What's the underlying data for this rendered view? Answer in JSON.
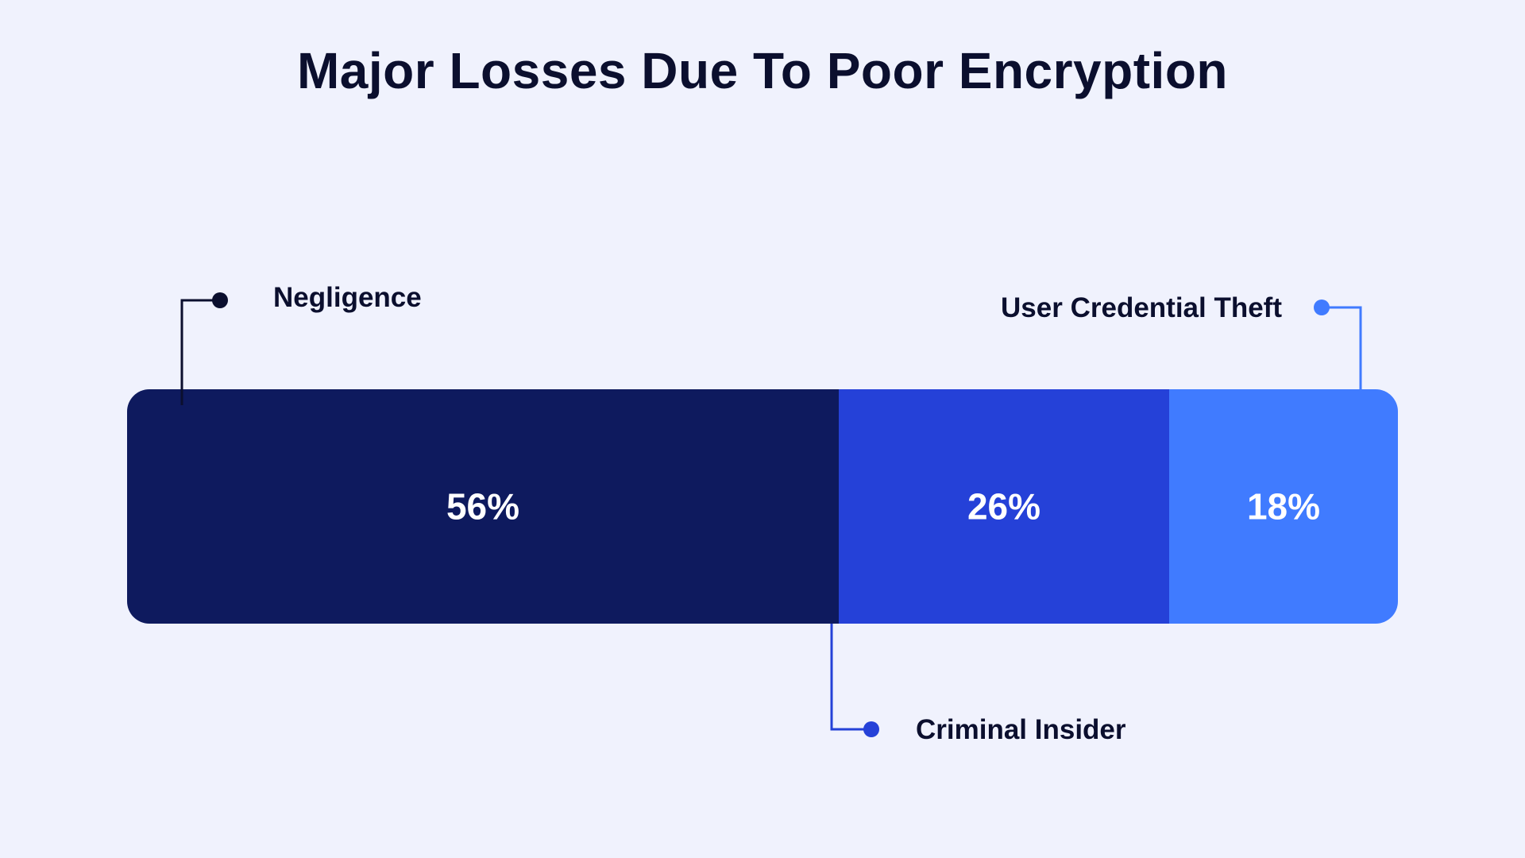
{
  "chart_data": {
    "type": "bar",
    "orientation": "horizontal-stacked",
    "title": "Major Losses Due To Poor Encryption",
    "total": 100,
    "series": [
      {
        "name": "Negligence",
        "value": 56,
        "label": "56%",
        "color": "#0E1A5E",
        "callout": "top-left"
      },
      {
        "name": "Criminal Insider",
        "value": 26,
        "label": "26%",
        "color": "#2541D8",
        "callout": "bottom"
      },
      {
        "name": "User Credential Theft",
        "value": 18,
        "label": "18%",
        "color": "#407BFF",
        "callout": "top-right"
      }
    ],
    "grid": false
  },
  "colors": {
    "background": "#F0F2FD",
    "title": "#0B0F2E",
    "callout_negligence": "#0B0F2E",
    "callout_criminal": "#2541D8",
    "callout_credential": "#407BFF"
  }
}
